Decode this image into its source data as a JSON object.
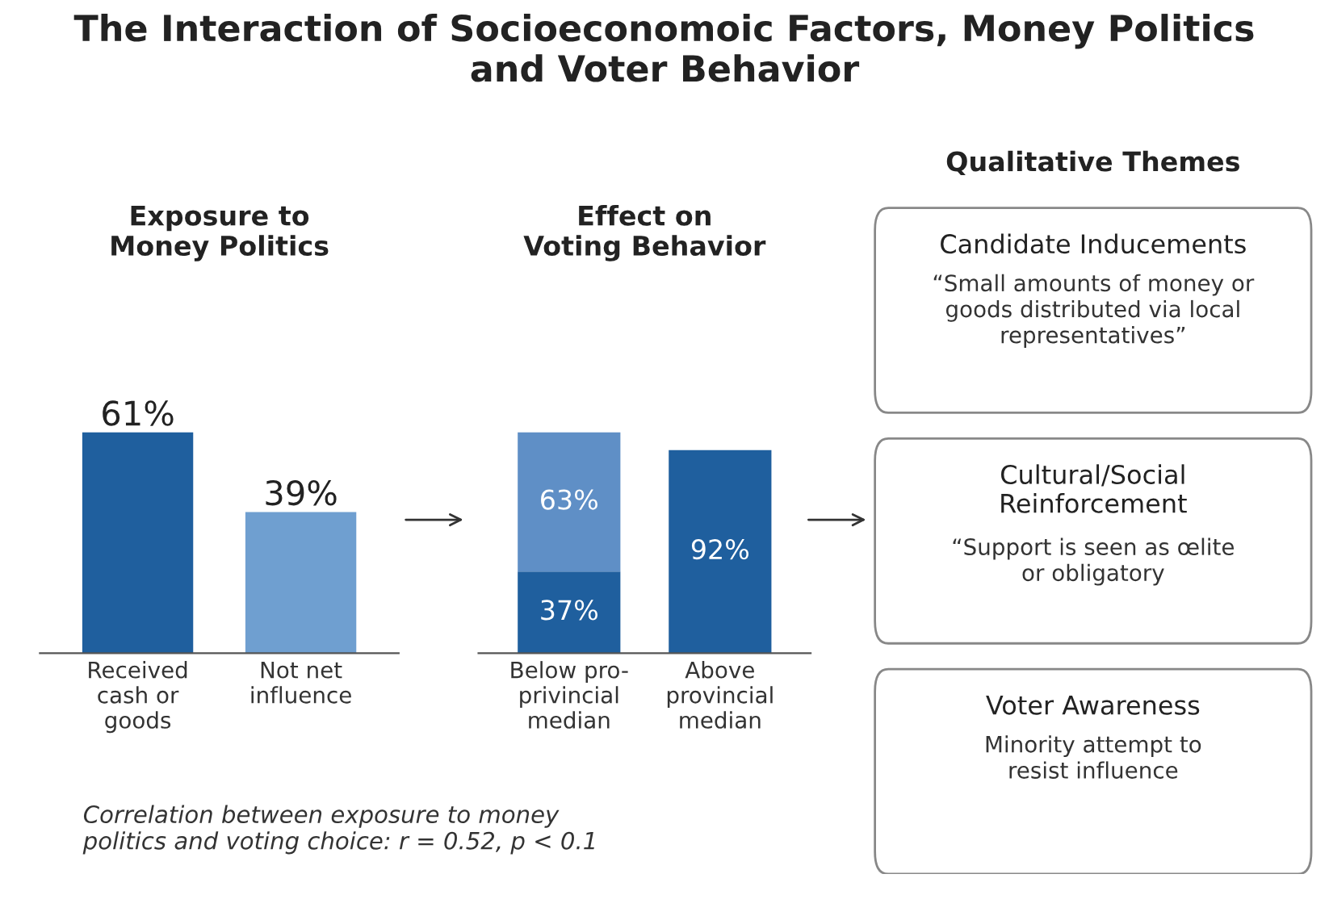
{
  "chart_data": [
    {
      "type": "bar",
      "title": "The Interaction of Socioeconomoic Factors, Money Politics\nand Voter Behavior",
      "subtitle": "Exposure to\nMoney Politics",
      "categories": [
        "Received\ncash or\ngoods",
        "Not net\ninfluence"
      ],
      "values": [
        61,
        39
      ],
      "value_labels": [
        "61%",
        "39%"
      ],
      "colors": [
        "#1f5f9e",
        "#6f9fd0"
      ],
      "tick_labels": "x",
      "grid": false,
      "legend": false,
      "annotations": [
        "Correlation between exposure to money\npolitics and voting choice: r = 0.52, p < 0.1"
      ]
    },
    {
      "type": "bar",
      "title": "Effect on\nVoting Behavior",
      "stacked": true,
      "categories": [
        "Below pro-\nprivincial\nmedian",
        "Above\nprovincial\nmedian"
      ],
      "series": [
        {
          "color": "#1f5f9e",
          "values": [
            37,
            92
          ],
          "value_labels": [
            "37%",
            "92%"
          ]
        },
        {
          "color": "#5f8fc6",
          "values": [
            63,
            null
          ],
          "value_labels": [
            "63%",
            null
          ]
        }
      ],
      "tick_labels": "x",
      "grid": false,
      "legend": false
    },
    {
      "type": "other",
      "title": "Qualitative Themes",
      "annotations": [
        "Candidate Inducements",
        "“Small amounts of money or\ngoods distributed via local\nrepresentatives”",
        "Cultural/Social\nReinforcement",
        "“Support is seen as œlite\nor obligatory",
        "Voter Awareness",
        "Minority attempt to\nresist influence"
      ]
    }
  ]
}
